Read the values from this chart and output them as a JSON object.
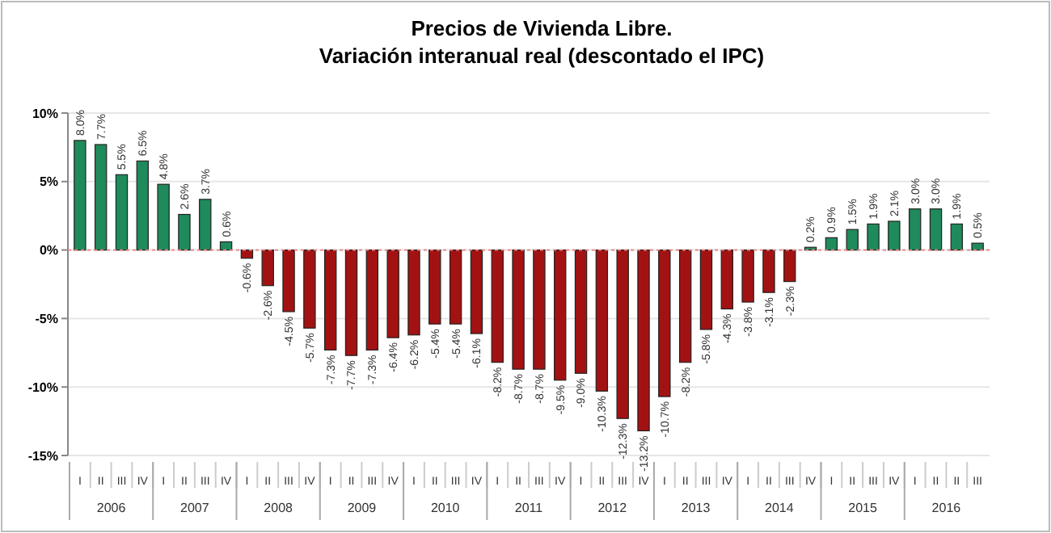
{
  "chart_data": {
    "type": "bar",
    "title": "Precios de Vivienda Libre.\nVariación interanual real (descontado el IPC)",
    "categories": [
      "I",
      "II",
      "III",
      "IV",
      "I",
      "II",
      "III",
      "IV",
      "I",
      "II",
      "III",
      "IV",
      "I",
      "II",
      "III",
      "IV",
      "I",
      "II",
      "III",
      "IV",
      "I",
      "II",
      "III",
      "IV",
      "I",
      "II",
      "III",
      "IV",
      "I",
      "II",
      "III",
      "IV",
      "I",
      "II",
      "III",
      "IV",
      "I",
      "II",
      "III",
      "IV",
      "I",
      "II",
      "II",
      "III"
    ],
    "values": [
      8.0,
      7.7,
      5.5,
      6.5,
      4.8,
      2.6,
      3.7,
      0.6,
      -0.6,
      -2.6,
      -4.5,
      -5.7,
      -7.3,
      -7.7,
      -7.3,
      -6.4,
      -6.2,
      -5.4,
      -5.4,
      -6.1,
      -8.2,
      -8.7,
      -8.7,
      -9.5,
      -9.0,
      -10.3,
      -12.3,
      -13.2,
      -10.7,
      -8.2,
      -5.8,
      -4.3,
      -3.8,
      -3.1,
      -2.3,
      0.2,
      0.9,
      1.5,
      1.9,
      2.1,
      3.0,
      3.0,
      1.9,
      0.5
    ],
    "value_labels": [
      "8.0%",
      "7.7%",
      "5.5%",
      "6.5%",
      "4.8%",
      "2.6%",
      "3.7%",
      "0.6%",
      "-0.6%",
      "-2.6%",
      "-4.5%",
      "-5.7%",
      "-7.3%",
      "-7.7%",
      "-7.3%",
      "-6.4%",
      "-6.2%",
      "-5.4%",
      "-5.4%",
      "-6.1%",
      "-8.2%",
      "-8.7%",
      "-8.7%",
      "-9.5%",
      "-9.0%",
      "-10.3%",
      "-12.3%",
      "-13.2%",
      "-10.7%",
      "-8.2%",
      "-5.8%",
      "-4.3%",
      "-3.8%",
      "-3.1%",
      "-2.3%",
      "0.2%",
      "0.9%",
      "1.5%",
      "1.9%",
      "2.1%",
      "3.0%",
      "3.0%",
      "1.9%",
      "0.5%"
    ],
    "colors": [
      "#1f8a5b",
      "#1f8a5b",
      "#1f8a5b",
      "#1f8a5b",
      "#1f8a5b",
      "#1f8a5b",
      "#1f8a5b",
      "#1f8a5b",
      "#a31212",
      "#a31212",
      "#a31212",
      "#a31212",
      "#a31212",
      "#a31212",
      "#a31212",
      "#a31212",
      "#a31212",
      "#a31212",
      "#a31212",
      "#a31212",
      "#a31212",
      "#a31212",
      "#a31212",
      "#a31212",
      "#a31212",
      "#a31212",
      "#a31212",
      "#a31212",
      "#a31212",
      "#a31212",
      "#a31212",
      "#a31212",
      "#a31212",
      "#a31212",
      "#a31212",
      "#1f8a5b",
      "#1f8a5b",
      "#1f8a5b",
      "#1f8a5b",
      "#1f8a5b",
      "#1f8a5b",
      "#1f8a5b",
      "#1f8a5b",
      "#1f8a5b"
    ],
    "ylim": [
      -15,
      10
    ],
    "yticks": [
      {
        "value": -15,
        "label": "-15%"
      },
      {
        "value": -10,
        "label": "-10%"
      },
      {
        "value": -5,
        "label": "-5%"
      },
      {
        "value": 0,
        "label": "0%"
      },
      {
        "value": 5,
        "label": "5%"
      },
      {
        "value": 10,
        "label": "10%"
      }
    ],
    "grid": "y",
    "ref_lines": [
      {
        "axis": "y",
        "value": 0,
        "color": "#f08080",
        "line_style": "dotted"
      }
    ],
    "annotations": [
      "2006",
      "2007",
      "2008",
      "2009",
      "2010",
      "2011",
      "2012",
      "2013",
      "2014",
      "2015",
      "2016"
    ]
  }
}
